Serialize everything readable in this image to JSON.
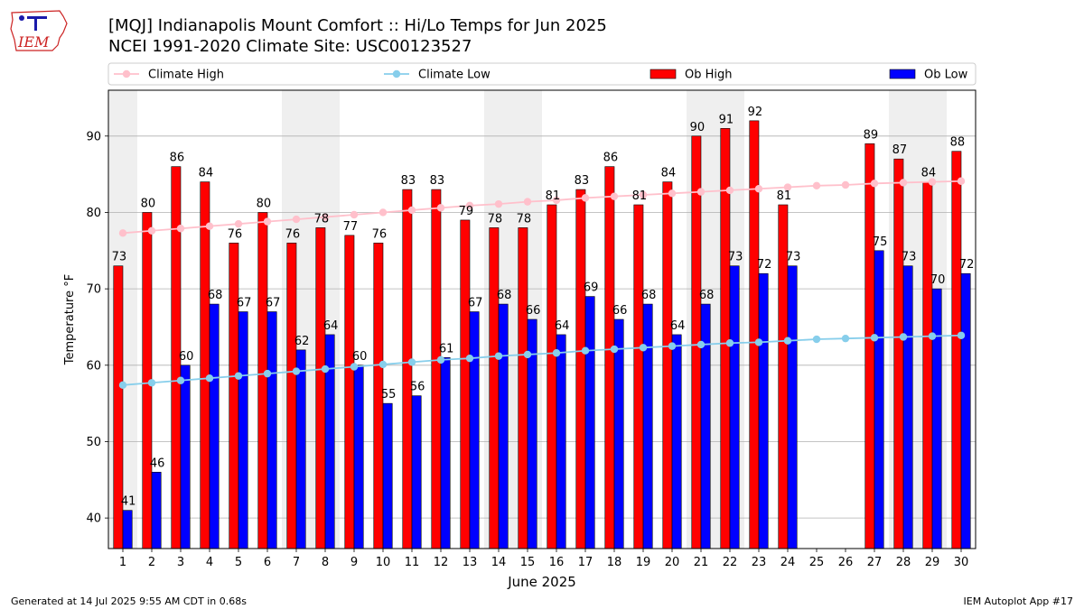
{
  "header": {
    "title_line1": "[MQJ] Indianapolis Mount Comfort :: Hi/Lo Temps for Jun 2025",
    "title_line2": "NCEI 1991-2020 Climate Site: USC00123527",
    "logo_text": "IEM"
  },
  "footer": {
    "generated": "Generated at 14 Jul 2025 9:55 AM CDT in 0.68s",
    "app": "IEM Autoplot App #17"
  },
  "colors": {
    "ob_high": "#ff0000",
    "ob_low": "#0000ff",
    "climate_high": "#ffc0cb",
    "climate_low": "#87ceeb",
    "weekend_band": "#efefef",
    "logo": "#cc2222"
  },
  "chart_data": {
    "type": "bar",
    "xlabel": "June 2025",
    "ylabel": "Temperature °F",
    "ylim": [
      36,
      96
    ],
    "yticks": [
      40,
      50,
      60,
      70,
      80,
      90
    ],
    "grid": "horizontal",
    "legend_placement": "top, horizontal",
    "categories": [
      "1",
      "2",
      "3",
      "4",
      "5",
      "6",
      "7",
      "8",
      "9",
      "10",
      "11",
      "12",
      "13",
      "14",
      "15",
      "16",
      "17",
      "18",
      "19",
      "20",
      "21",
      "22",
      "23",
      "24",
      "25",
      "26",
      "27",
      "28",
      "29",
      "30"
    ],
    "shaded_days": [
      1,
      7,
      8,
      14,
      15,
      21,
      22,
      28,
      29
    ],
    "series": [
      {
        "name": "Climate High",
        "kind": "line",
        "values": [
          77.3,
          77.6,
          77.9,
          78.2,
          78.5,
          78.8,
          79.1,
          79.4,
          79.7,
          80.0,
          80.3,
          80.6,
          80.9,
          81.1,
          81.4,
          81.6,
          81.9,
          82.1,
          82.3,
          82.5,
          82.7,
          82.9,
          83.1,
          83.3,
          83.5,
          83.6,
          83.8,
          83.9,
          84.0,
          84.1
        ]
      },
      {
        "name": "Climate Low",
        "kind": "line",
        "values": [
          57.4,
          57.7,
          58.0,
          58.3,
          58.6,
          58.9,
          59.2,
          59.5,
          59.8,
          60.1,
          60.4,
          60.7,
          60.9,
          61.2,
          61.4,
          61.6,
          61.9,
          62.1,
          62.3,
          62.5,
          62.7,
          62.9,
          63.0,
          63.2,
          63.4,
          63.5,
          63.6,
          63.7,
          63.8,
          63.9
        ]
      },
      {
        "name": "Ob High",
        "kind": "bar",
        "values": [
          73,
          80,
          86,
          84,
          76,
          80,
          76,
          78,
          77,
          76,
          83,
          83,
          79,
          78,
          78,
          81,
          83,
          86,
          81,
          84,
          90,
          91,
          92,
          81,
          null,
          null,
          89,
          87,
          84,
          88
        ]
      },
      {
        "name": "Ob Low",
        "kind": "bar",
        "values": [
          41,
          46,
          60,
          68,
          67,
          67,
          62,
          64,
          60,
          55,
          56,
          61,
          67,
          68,
          66,
          64,
          69,
          66,
          68,
          64,
          68,
          73,
          72,
          73,
          null,
          null,
          75,
          73,
          70,
          72
        ]
      }
    ]
  }
}
